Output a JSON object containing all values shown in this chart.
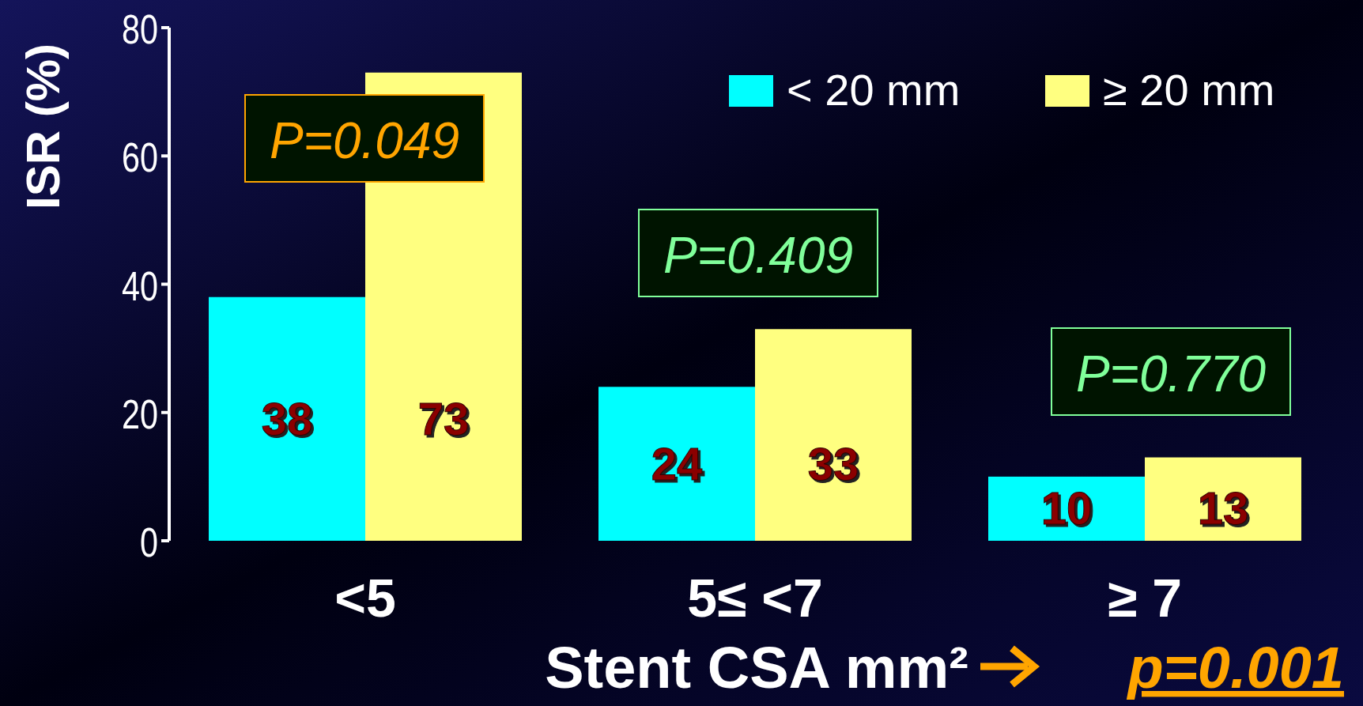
{
  "chart_data": {
    "type": "bar",
    "ylabel": "ISR (%)",
    "xlabel": "Stent CSA mm²",
    "categories": [
      "<5",
      "5≤  <7",
      "≥ 7"
    ],
    "series": [
      {
        "name": "< 20 mm",
        "color": "#00ffff",
        "values": [
          38,
          24,
          10
        ]
      },
      {
        "name": "≥ 20 mm",
        "color": "#ffff80",
        "values": [
          73,
          33,
          13
        ]
      }
    ],
    "ylim": [
      0,
      80
    ],
    "yticks": [
      0,
      20,
      40,
      60,
      80
    ],
    "data_labels": true,
    "legend": "top right",
    "annotations": [
      "P=0.049",
      "P=0.409",
      "P=0.770",
      "p=0.001"
    ]
  }
}
